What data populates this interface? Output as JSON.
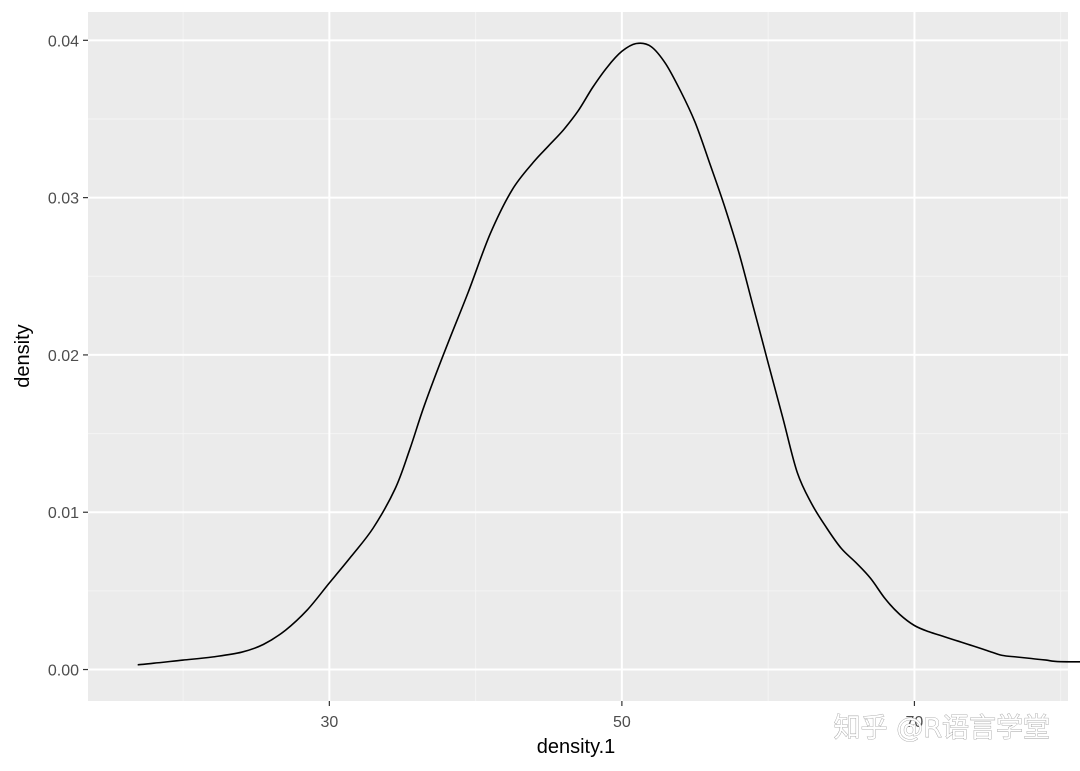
{
  "chart_data": {
    "type": "line",
    "title": "",
    "xlabel": "density.1",
    "ylabel": "density",
    "xlim": [
      13.5,
      80.5
    ],
    "ylim": [
      -0.002,
      0.0418
    ],
    "x_ticks": [
      30,
      50,
      70
    ],
    "x_tick_labels": [
      "30",
      "50",
      "70"
    ],
    "x_minor_ticks": [
      20,
      40,
      60,
      80
    ],
    "y_ticks": [
      0.0,
      0.01,
      0.02,
      0.03,
      0.04
    ],
    "y_tick_labels": [
      "0.00",
      "0.01",
      "0.02",
      "0.03",
      "0.04"
    ],
    "y_minor_ticks": [
      0.005,
      0.015,
      0.025,
      0.035
    ],
    "grid": true,
    "background": "#ebebeb",
    "line_color": "#000000",
    "series": [
      {
        "x": [
          16.9,
          18,
          20,
          22,
          24,
          25.5,
          27,
          28.5,
          30,
          31.5,
          33,
          34.5,
          35.5,
          36.5,
          38,
          39.5,
          41,
          42.5,
          44,
          45,
          46,
          47,
          48,
          49,
          50,
          51,
          52,
          53,
          54,
          55,
          56,
          57,
          58,
          59,
          60,
          61,
          62,
          63,
          64,
          65,
          66,
          67,
          68,
          69,
          70,
          71,
          72,
          73,
          74,
          75,
          76,
          77,
          78,
          79,
          80,
          83.3
        ],
        "y": [
          0.0003,
          0.0004,
          0.0006,
          0.0008,
          0.0011,
          0.0016,
          0.0025,
          0.0038,
          0.0055,
          0.0072,
          0.009,
          0.0115,
          0.014,
          0.0168,
          0.0205,
          0.024,
          0.0277,
          0.0305,
          0.0323,
          0.0333,
          0.0343,
          0.0355,
          0.037,
          0.0383,
          0.0393,
          0.0398,
          0.0396,
          0.0385,
          0.0368,
          0.0348,
          0.0322,
          0.0295,
          0.0265,
          0.023,
          0.0195,
          0.016,
          0.0125,
          0.0105,
          0.009,
          0.0077,
          0.0068,
          0.0058,
          0.0045,
          0.0035,
          0.0028,
          0.0024,
          0.0021,
          0.0018,
          0.0015,
          0.0012,
          0.0009,
          0.0008,
          0.0007,
          0.0006,
          0.0005,
          0.0005
        ]
      }
    ]
  },
  "watermark": "知乎 @R语言学堂"
}
